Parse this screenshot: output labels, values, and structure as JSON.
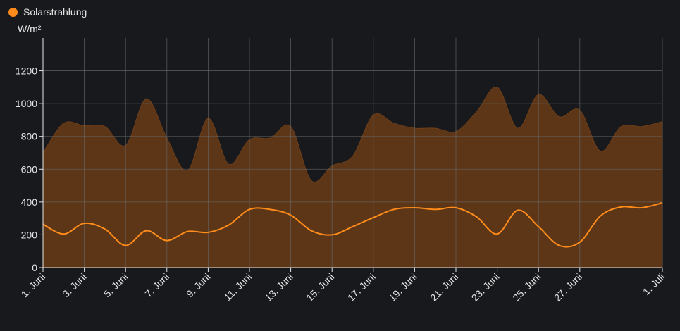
{
  "legend": {
    "series_name": "Solarstrahlung",
    "dot_color": "#ff8c1a"
  },
  "unit": "W/m²",
  "colors": {
    "background": "#18191d",
    "grid": "#6b6b6b",
    "area_fill": "#5c3617",
    "area_stroke": "#6e3e18",
    "line": "#ff8c1a",
    "axis": "#e6e6e6"
  },
  "chart_data": {
    "type": "area",
    "title": "",
    "xlabel": "",
    "ylabel": "W/m²",
    "ylim": [
      0,
      1400
    ],
    "yticks": [
      0,
      200,
      400,
      600,
      800,
      1000,
      1200
    ],
    "xlim": [
      "1. Juni",
      "1. Juli"
    ],
    "xticks": [
      {
        "day": 0,
        "label": "1. Juni"
      },
      {
        "day": 2,
        "label": "3. Juni"
      },
      {
        "day": 4,
        "label": "5. Juni"
      },
      {
        "day": 6,
        "label": "7. Juni"
      },
      {
        "day": 8,
        "label": "9. Juni"
      },
      {
        "day": 10,
        "label": "11. Juni"
      },
      {
        "day": 12,
        "label": "13. Juni"
      },
      {
        "day": 14,
        "label": "15. Juni"
      },
      {
        "day": 16,
        "label": "17. Juni"
      },
      {
        "day": 18,
        "label": "19. Juni"
      },
      {
        "day": 20,
        "label": "21. Juni"
      },
      {
        "day": 22,
        "label": "23. Juni"
      },
      {
        "day": 24,
        "label": "25. Juni"
      },
      {
        "day": 26,
        "label": "27. Juni"
      },
      {
        "day": 30,
        "label": "1. Juli"
      }
    ],
    "grid": true,
    "legend_position": "top-left",
    "series": [
      {
        "name": "",
        "kind": "area",
        "points": [
          [
            0,
            700
          ],
          [
            1,
            880
          ],
          [
            2,
            865
          ],
          [
            3,
            860
          ],
          [
            4,
            745
          ],
          [
            5,
            1030
          ],
          [
            6,
            790
          ],
          [
            7,
            590
          ],
          [
            8,
            910
          ],
          [
            9,
            630
          ],
          [
            10,
            780
          ],
          [
            11,
            790
          ],
          [
            12,
            860
          ],
          [
            13,
            530
          ],
          [
            14,
            620
          ],
          [
            15,
            680
          ],
          [
            16,
            930
          ],
          [
            17,
            880
          ],
          [
            18,
            850
          ],
          [
            19,
            850
          ],
          [
            20,
            830
          ],
          [
            21,
            950
          ],
          [
            22,
            1100
          ],
          [
            23,
            850
          ],
          [
            24,
            1055
          ],
          [
            25,
            920
          ],
          [
            26,
            960
          ],
          [
            27,
            710
          ],
          [
            28,
            860
          ],
          [
            29,
            860
          ],
          [
            30,
            890
          ]
        ]
      },
      {
        "name": "Solarstrahlung",
        "kind": "line",
        "points": [
          [
            0,
            265
          ],
          [
            1,
            205
          ],
          [
            2,
            270
          ],
          [
            3,
            235
          ],
          [
            4,
            135
          ],
          [
            5,
            225
          ],
          [
            6,
            165
          ],
          [
            7,
            220
          ],
          [
            8,
            215
          ],
          [
            9,
            260
          ],
          [
            10,
            355
          ],
          [
            11,
            355
          ],
          [
            12,
            320
          ],
          [
            13,
            225
          ],
          [
            14,
            200
          ],
          [
            15,
            250
          ],
          [
            16,
            305
          ],
          [
            17,
            355
          ],
          [
            18,
            365
          ],
          [
            19,
            355
          ],
          [
            20,
            365
          ],
          [
            21,
            310
          ],
          [
            22,
            205
          ],
          [
            23,
            350
          ],
          [
            24,
            250
          ],
          [
            25,
            135
          ],
          [
            26,
            155
          ],
          [
            27,
            315
          ],
          [
            28,
            370
          ],
          [
            29,
            365
          ],
          [
            30,
            395
          ]
        ]
      }
    ]
  }
}
